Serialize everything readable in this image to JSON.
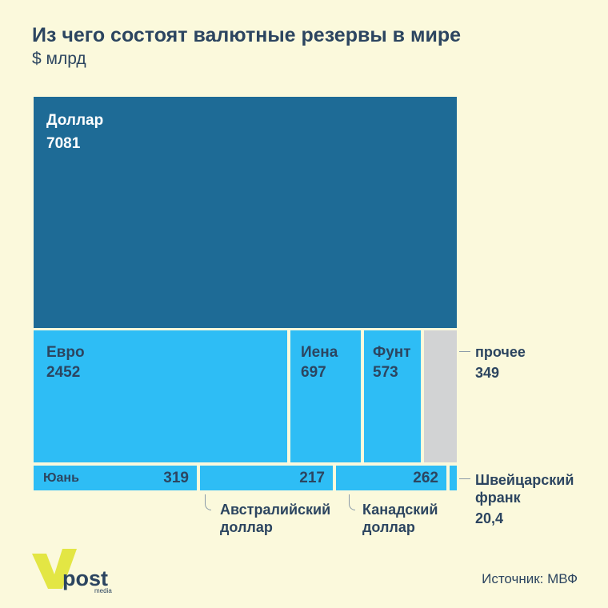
{
  "header": {
    "title": "Из чего состоят валютные резервы в мире",
    "subtitle": "$ млрд"
  },
  "source": "Источник: МВФ",
  "logo": {
    "text": "post",
    "subtext": "media"
  },
  "colors": {
    "dollar": "#1e6b96",
    "other_currencies": "#2ebdf5",
    "other_gray": "#d2d3d4",
    "text": "#2c4560",
    "background": "#fbf9dc",
    "logo": "#e3e644"
  },
  "chart_data": {
    "type": "treemap",
    "title": "Из чего состоят валютные резервы в мире",
    "unit": "$ млрд",
    "items": [
      {
        "name": "Доллар",
        "value": 7081,
        "value_label": "7081"
      },
      {
        "name": "Евро",
        "value": 2452,
        "value_label": "2452"
      },
      {
        "name": "Иена",
        "value": 697,
        "value_label": "697"
      },
      {
        "name": "Фунт",
        "value": 573,
        "value_label": "573"
      },
      {
        "name": "прочее",
        "value": 349,
        "value_label": "349"
      },
      {
        "name": "Юань",
        "value": 319,
        "value_label": "319"
      },
      {
        "name": "Австралийский доллар",
        "value": 217,
        "value_label": "217"
      },
      {
        "name": "Канадский доллар",
        "value": 262,
        "value_label": "262"
      },
      {
        "name": "Швейцарский франк",
        "value": 20.4,
        "value_label": "20,4"
      }
    ],
    "labels": {
      "aud_line1": "Австралийский",
      "aud_line2": "доллар",
      "cad_line1": "Канадский",
      "cad_line2": "доллар",
      "chf_line1": "Швейцарский",
      "chf_line2": "франк"
    }
  }
}
